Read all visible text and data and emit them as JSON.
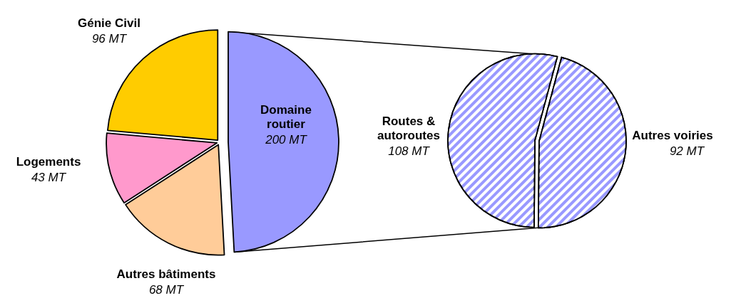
{
  "chart_data": [
    {
      "type": "pie",
      "categories": [
        "Domaine routier",
        "Autres bâtiments",
        "Logements",
        "Génie Civil"
      ],
      "values": [
        200,
        68,
        43,
        96
      ],
      "colors": [
        "#9999ff",
        "#ffcc99",
        "#ff99cc",
        "#ffcc00"
      ],
      "value_labels": [
        "200 MT",
        "68 MT",
        "43 MT",
        "96 MT"
      ]
    },
    {
      "type": "pie",
      "categories": [
        "Routes & autoroutes",
        "Autres voiries"
      ],
      "values": [
        108,
        92
      ],
      "colors": [
        "#9999ff",
        "#9999ff"
      ],
      "value_labels": [
        "108 MT",
        "92 MT"
      ]
    }
  ]
}
